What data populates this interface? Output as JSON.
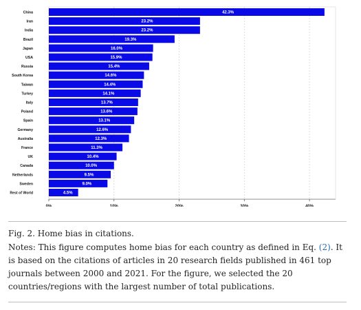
{
  "chart_data": {
    "type": "bar",
    "orientation": "horizontal",
    "categories": [
      "China",
      "Iran",
      "India",
      "Brazil",
      "Japan",
      "USA",
      "Russia",
      "South Korea",
      "Taiwan",
      "Turkey",
      "Italy",
      "Poland",
      "Spain",
      "Germany",
      "Australia",
      "France",
      "UK",
      "Canada",
      "Netherlands",
      "Sweden",
      "Rest of World"
    ],
    "values": [
      42.3,
      23.2,
      23.2,
      19.3,
      16.0,
      15.9,
      15.4,
      14.6,
      14.4,
      14.1,
      13.7,
      13.6,
      13.1,
      12.6,
      12.3,
      11.3,
      10.4,
      10.0,
      9.5,
      9.0,
      4.5
    ],
    "data_labels": [
      "42.3%",
      "23.2%",
      "23.2%",
      "19.3%",
      "16.0%",
      "15.9%",
      "15.4%",
      "14.6%",
      "14.4%",
      "14.1%",
      "13.7%",
      "13.6%",
      "13.1%",
      "12.6%",
      "12.3%",
      "11.3%",
      "10.4%",
      "10.0%",
      "9.5%",
      "9.0%",
      "4.5%"
    ],
    "xlim": [
      0,
      44
    ],
    "x_ticks": [
      0,
      10,
      20,
      30,
      40
    ],
    "x_tick_labels": [
      "0%",
      "10%",
      "20%",
      "30%",
      "40%"
    ],
    "bar_color": "#0a0ae6",
    "grid": "vertical dotted",
    "title": "",
    "xlabel": "",
    "ylabel": ""
  },
  "caption": {
    "figure_title": "Fig. 2. Home bias in citations.",
    "notes_before_ref": "Notes: This figure computes home bias for each country as defined in Eq. ",
    "notes_ref": "(2)",
    "notes_after_ref": ". It is based on the citations of articles in 20 research fields published in 461 top journals between 2000 and 2021. For the figure, we selected the 20 countries/regions with the largest number of total publications."
  },
  "colors": {
    "bar": "#0a0ae6",
    "link": "#2a6fb0"
  }
}
